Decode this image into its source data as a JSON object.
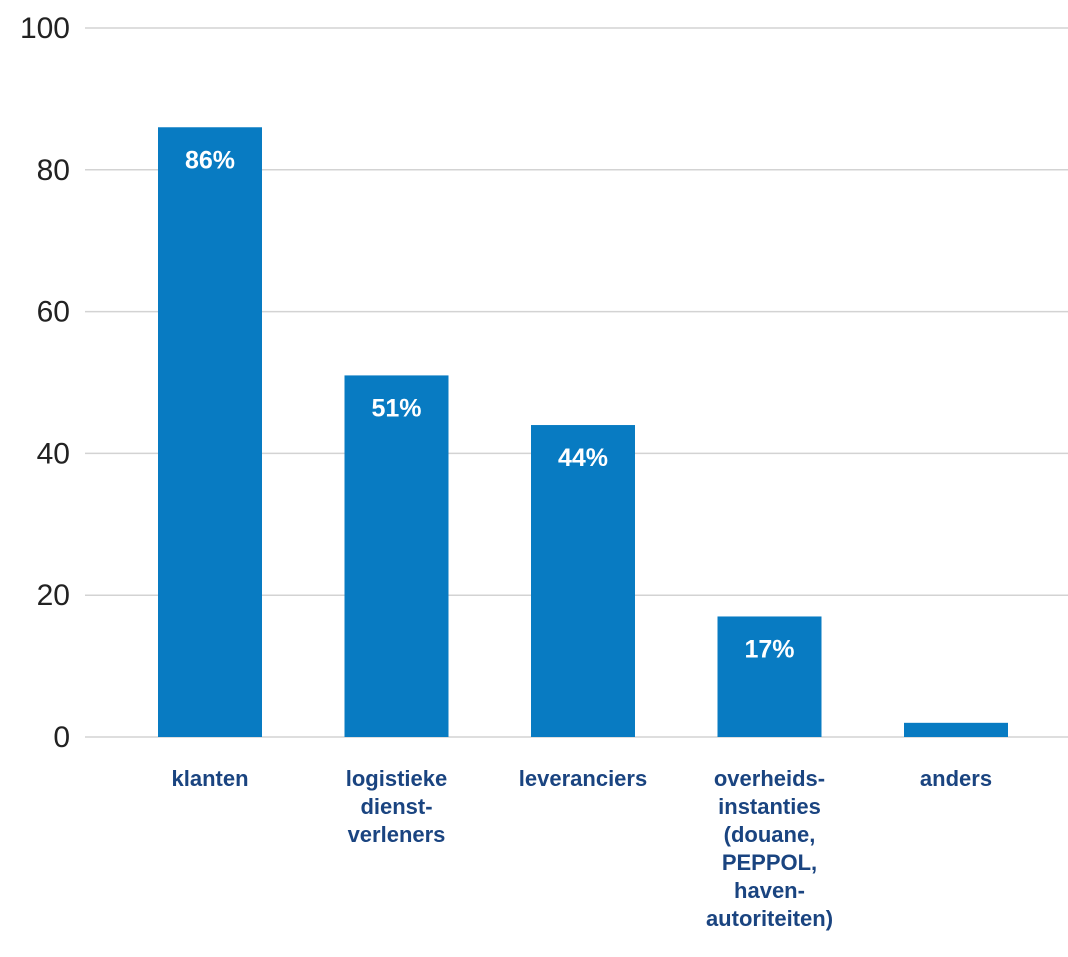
{
  "chart_data": {
    "type": "bar",
    "title": "",
    "xlabel": "",
    "ylabel": "",
    "categories": [
      "klanten",
      "logistieke\ndienst-\nverleners",
      "leveranciers",
      "overheids-\ninstanties\n(douane,\nPEPPOL,\nhaven-\nautoriteiten)",
      "anders"
    ],
    "values": [
      86,
      51,
      44,
      17,
      2
    ],
    "data_labels": [
      "86%",
      "51%",
      "44%",
      "17%",
      ""
    ],
    "ylim": [
      0,
      100
    ],
    "y_ticks": [
      0,
      20,
      40,
      60,
      80,
      100
    ],
    "grid": true,
    "legend": "none",
    "colors": {
      "bar": "#087bc2",
      "grid": "#d3d3d3",
      "x_label": "#1a4480",
      "y_label": "#222222",
      "data_label": "#ffffff"
    }
  }
}
